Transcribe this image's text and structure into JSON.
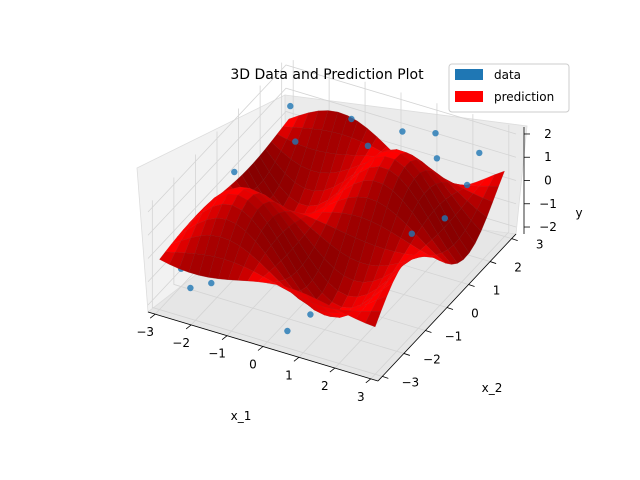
{
  "chart_data": {
    "type": "surface3d",
    "title": "3D Data and Prediction Plot",
    "xlabel": "x_1",
    "zlabel": "x_2",
    "ylabel": "y",
    "x_ticks": [
      "−3",
      "−2",
      "−1",
      "0",
      "1",
      "2",
      "3"
    ],
    "z_ticks": [
      "−3",
      "−2",
      "−1",
      "0",
      "1",
      "2",
      "3"
    ],
    "y_ticks": [
      "−2",
      "−1",
      "0",
      "1",
      "2"
    ],
    "xlim": [
      -3.2,
      3.2
    ],
    "zlim": [
      -3.2,
      3.2
    ],
    "ylim": [
      -2.3,
      2.3
    ],
    "grid": true,
    "legend_position": "top-right",
    "legend": [
      {
        "label": "data",
        "color": "#1f77b4"
      },
      {
        "label": "prediction",
        "color": "#ff0000"
      }
    ],
    "surface_function": "y = sin(x_1) * sin(x_2) * 2 (approx, oscillating surface)",
    "scatter_points": [
      [
        -2.6,
        2.4,
        1.3
      ],
      [
        -2.1,
        1.8,
        0.6
      ],
      [
        -1.2,
        2.9,
        0.9
      ],
      [
        0.4,
        2.6,
        1.4
      ],
      [
        1.2,
        2.8,
        1.5
      ],
      [
        1.6,
        2.2,
        1.2
      ],
      [
        2.6,
        2.5,
        1.6
      ],
      [
        2.8,
        1.6,
        1.2
      ],
      [
        2.4,
        -0.3,
        0.8
      ],
      [
        2.9,
        0.4,
        1.0
      ],
      [
        -2.7,
        -2.5,
        -0.9
      ],
      [
        -2.2,
        -2.9,
        -1.1
      ],
      [
        -1.8,
        -2.6,
        -1.0
      ],
      [
        0.5,
        -2.9,
        -1.7
      ],
      [
        0.9,
        -2.5,
        -1.2
      ],
      [
        -0.2,
        2.0,
        1.1
      ],
      [
        -2.9,
        0.3,
        0.4
      ],
      [
        2.1,
        -2.4,
        -0.5
      ],
      [
        1.6,
        0.9,
        0.9
      ]
    ]
  }
}
